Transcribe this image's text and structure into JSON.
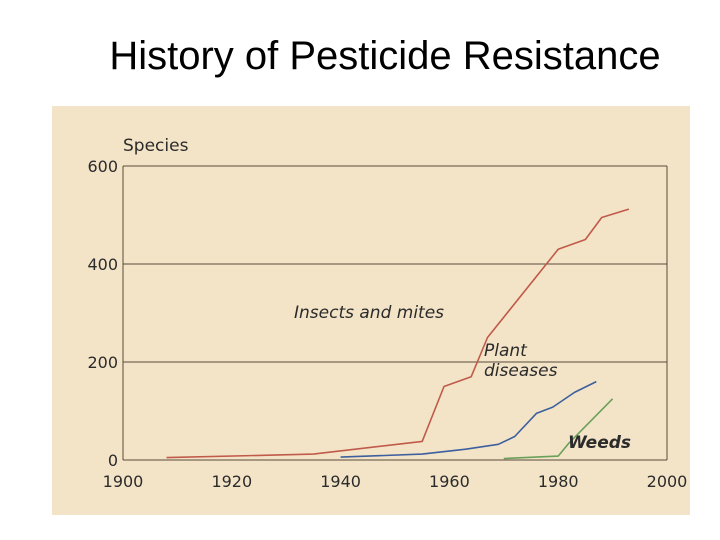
{
  "slide": {
    "title": "History of Pesticide Resistance"
  },
  "chart_data": {
    "type": "line",
    "ylabel": "Species",
    "xlim": [
      1900,
      2000
    ],
    "ylim": [
      0,
      600
    ],
    "x_ticks": [
      1900,
      1920,
      1940,
      1960,
      1980,
      2000
    ],
    "y_ticks": [
      0,
      200,
      400,
      600
    ],
    "grid": "horizontal",
    "background": "#f3e4c8",
    "series": [
      {
        "name": "Insects and mites",
        "color": "#c05a4a",
        "points": [
          [
            1908,
            5
          ],
          [
            1935,
            12
          ],
          [
            1955,
            38
          ],
          [
            1959,
            150
          ],
          [
            1964,
            170
          ],
          [
            1967,
            250
          ],
          [
            1980,
            430
          ],
          [
            1985,
            450
          ],
          [
            1988,
            495
          ],
          [
            1993,
            512
          ]
        ]
      },
      {
        "name": "Plant diseases",
        "color": "#3d5f9e",
        "points": [
          [
            1940,
            6
          ],
          [
            1955,
            12
          ],
          [
            1963,
            22
          ],
          [
            1969,
            32
          ],
          [
            1972,
            48
          ],
          [
            1976,
            95
          ],
          [
            1979,
            108
          ],
          [
            1983,
            138
          ],
          [
            1987,
            160
          ]
        ]
      },
      {
        "name": "Weeds",
        "color": "#6aa05a",
        "points": [
          [
            1970,
            3
          ],
          [
            1980,
            8
          ],
          [
            1982,
            35
          ],
          [
            1990,
            125
          ]
        ]
      }
    ]
  }
}
